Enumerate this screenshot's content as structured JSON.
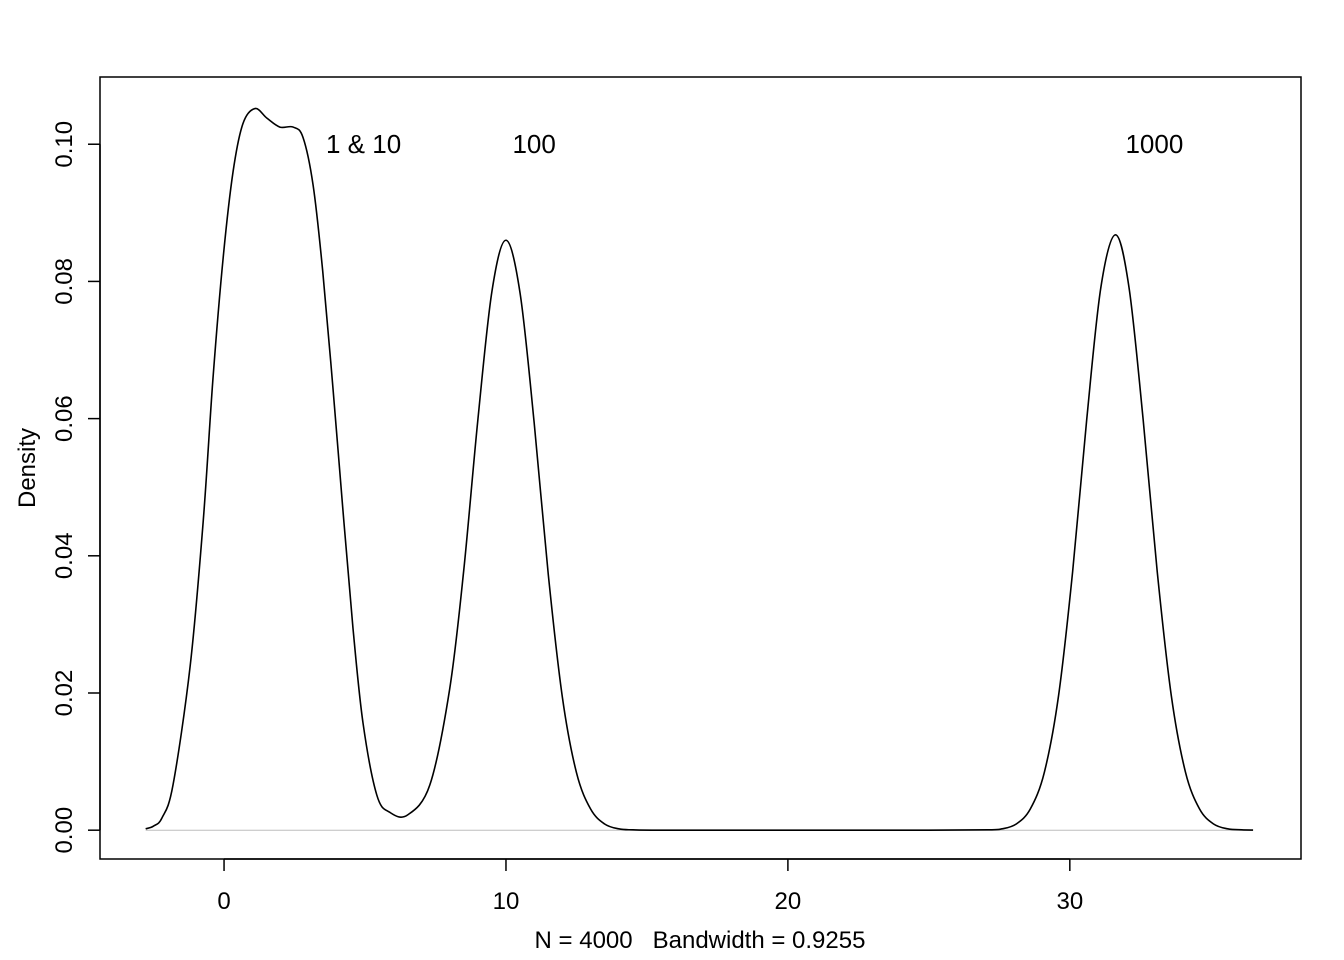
{
  "chart_data": {
    "type": "line",
    "title": "",
    "xlabel": "N = 4000   Bandwidth = 0.9255",
    "ylabel": "Density",
    "xlim": [
      -4.4,
      38.2
    ],
    "ylim": [
      -0.0042,
      0.1098
    ],
    "x_ticks": [
      0,
      10,
      20,
      30
    ],
    "x_tick_labels": [
      "0",
      "10",
      "20",
      "30"
    ],
    "y_ticks": [
      0,
      0.02,
      0.04,
      0.06,
      0.08,
      0.1
    ],
    "y_tick_labels": [
      "0.00",
      "0.02",
      "0.04",
      "0.06",
      "0.08",
      "0.10"
    ],
    "grid": false,
    "zero_line_color": "#bebebe",
    "line_color": "#000000",
    "annotations": [
      {
        "text": "1 & 10",
        "x": 4.95,
        "y": 0.1
      },
      {
        "text": "100",
        "x": 11.0,
        "y": 0.1
      },
      {
        "text": "1000",
        "x": 33.0,
        "y": 0.1
      }
    ],
    "series": [
      {
        "x": [
          -2.78,
          -2.5,
          -2.2,
          -1.81,
          -1.2,
          -0.74,
          -0.39,
          -0.03,
          0.32,
          0.67,
          1.1,
          1.52,
          1.98,
          2.45,
          2.8,
          3.16,
          3.5,
          3.86,
          4.22,
          4.57,
          4.93,
          5.42,
          5.88,
          6.5,
          7.3,
          8.0,
          8.5,
          9.0,
          9.5,
          10.0,
          10.5,
          11.0,
          11.5,
          12.0,
          12.5,
          13.0,
          13.5,
          14.0,
          14.5,
          15.5,
          20,
          25,
          27.1,
          27.6,
          28.1,
          28.6,
          29.1,
          29.6,
          30.1,
          30.6,
          31.1,
          31.62,
          32.1,
          32.6,
          33.1,
          33.6,
          34.1,
          34.6,
          35.1,
          35.6,
          36.1,
          36.5
        ],
        "y": [
          0.0002,
          0.0006,
          0.0018,
          0.0066,
          0.024,
          0.045,
          0.066,
          0.0835,
          0.096,
          0.103,
          0.1052,
          0.1038,
          0.1025,
          0.1025,
          0.101,
          0.094,
          0.0815,
          0.0646,
          0.0465,
          0.0296,
          0.0156,
          0.0051,
          0.0026,
          0.0022,
          0.0066,
          0.0205,
          0.0378,
          0.0597,
          0.0785,
          0.086,
          0.0783,
          0.0594,
          0.0373,
          0.0194,
          0.0084,
          0.0031,
          0.0009,
          0.0002,
          5e-05,
          0.0,
          0.0,
          0.0,
          5e-05,
          0.0002,
          0.0009,
          0.0031,
          0.0085,
          0.0196,
          0.0377,
          0.0599,
          0.0791,
          0.0868,
          0.0791,
          0.0599,
          0.0377,
          0.0196,
          0.0085,
          0.0031,
          0.0009,
          0.0002,
          5e-05,
          2e-05
        ]
      }
    ]
  }
}
